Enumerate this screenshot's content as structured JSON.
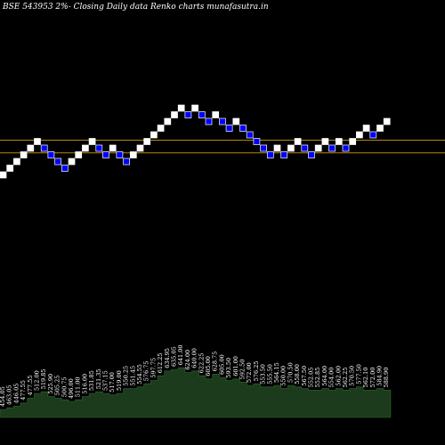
{
  "header": {
    "title": "BSE 543953 2%-  Closing Daily data  Renko  charts munafasutra.in"
  },
  "colors": {
    "background": "#000000",
    "up_brick": "#ffffff",
    "down_brick": "#0000ff",
    "down_brick_border": "#ffffff",
    "support_line": "#b8860b",
    "volume_fill": "#1c3a1c",
    "volume_edge": "#2f6b2f"
  },
  "chart_data": {
    "type": "renko",
    "brick_size_percent": 2,
    "bricks": [
      {
        "dir": "up",
        "level": 0
      },
      {
        "dir": "up",
        "level": 1
      },
      {
        "dir": "up",
        "level": 2
      },
      {
        "dir": "up",
        "level": 3
      },
      {
        "dir": "up",
        "level": 4
      },
      {
        "dir": "up",
        "level": 5
      },
      {
        "dir": "down",
        "level": 4
      },
      {
        "dir": "down",
        "level": 3
      },
      {
        "dir": "down",
        "level": 2
      },
      {
        "dir": "down",
        "level": 1
      },
      {
        "dir": "up",
        "level": 2
      },
      {
        "dir": "up",
        "level": 3
      },
      {
        "dir": "up",
        "level": 4
      },
      {
        "dir": "up",
        "level": 5
      },
      {
        "dir": "down",
        "level": 4
      },
      {
        "dir": "down",
        "level": 3
      },
      {
        "dir": "up",
        "level": 4
      },
      {
        "dir": "down",
        "level": 3
      },
      {
        "dir": "down",
        "level": 2
      },
      {
        "dir": "up",
        "level": 3
      },
      {
        "dir": "up",
        "level": 4
      },
      {
        "dir": "up",
        "level": 5
      },
      {
        "dir": "up",
        "level": 6
      },
      {
        "dir": "up",
        "level": 7
      },
      {
        "dir": "up",
        "level": 8
      },
      {
        "dir": "up",
        "level": 9
      },
      {
        "dir": "up",
        "level": 10
      },
      {
        "dir": "down",
        "level": 9
      },
      {
        "dir": "up",
        "level": 10
      },
      {
        "dir": "down",
        "level": 9
      },
      {
        "dir": "down",
        "level": 8
      },
      {
        "dir": "up",
        "level": 9
      },
      {
        "dir": "down",
        "level": 8
      },
      {
        "dir": "down",
        "level": 7
      },
      {
        "dir": "up",
        "level": 8
      },
      {
        "dir": "down",
        "level": 7
      },
      {
        "dir": "down",
        "level": 6
      },
      {
        "dir": "down",
        "level": 5
      },
      {
        "dir": "down",
        "level": 4
      },
      {
        "dir": "down",
        "level": 3
      },
      {
        "dir": "up",
        "level": 4
      },
      {
        "dir": "down",
        "level": 3
      },
      {
        "dir": "up",
        "level": 4
      },
      {
        "dir": "up",
        "level": 5
      },
      {
        "dir": "down",
        "level": 4
      },
      {
        "dir": "down",
        "level": 3
      },
      {
        "dir": "up",
        "level": 4
      },
      {
        "dir": "up",
        "level": 5
      },
      {
        "dir": "down",
        "level": 4
      },
      {
        "dir": "up",
        "level": 5
      },
      {
        "dir": "down",
        "level": 4
      },
      {
        "dir": "up",
        "level": 5
      },
      {
        "dir": "up",
        "level": 6
      },
      {
        "dir": "up",
        "level": 7
      },
      {
        "dir": "down",
        "level": 6
      },
      {
        "dir": "up",
        "level": 7
      },
      {
        "dir": "up",
        "level": 8
      }
    ],
    "price_labels": [
      "454.05",
      "463.05",
      "446.05",
      "477.55",
      "477.55",
      "512.00",
      "519.85",
      "525.90",
      "505.25",
      "500.75",
      "496.00",
      "511.00",
      "516.00",
      "531.85",
      "521.35",
      "537.15",
      "517.00",
      "519.00",
      "550.25",
      "551.45",
      "554.55",
      "576.75",
      "597.75",
      "612.25",
      "634.95",
      "635.05",
      "641.00",
      "624.00",
      "640.00",
      "622.25",
      "605.00",
      "628.75",
      "605.00",
      "593.50",
      "601.00",
      "592.50",
      "572.00",
      "576.25",
      "553.50",
      "555.50",
      "564.15",
      "550.00",
      "570.50",
      "558.00",
      "567.50",
      "552.05",
      "552.85",
      "564.00",
      "554.00",
      "562.00",
      "562.25",
      "570.50",
      "577.50",
      "562.10",
      "572.00",
      "584.90",
      "588.90"
    ],
    "support_levels": [
      5.2,
      3.3
    ],
    "volume": [
      10,
      12,
      14,
      18,
      24,
      30,
      32,
      26,
      24,
      22,
      20,
      22,
      26,
      30,
      32,
      30,
      28,
      30,
      36,
      36,
      38,
      42,
      46,
      52,
      58,
      60,
      62,
      56,
      58,
      52,
      48,
      54,
      50,
      46,
      48,
      44,
      40,
      42,
      38,
      38,
      40,
      36,
      40,
      38,
      36,
      34,
      34,
      36,
      34,
      36,
      34,
      36,
      38,
      34,
      34,
      36,
      34
    ]
  }
}
